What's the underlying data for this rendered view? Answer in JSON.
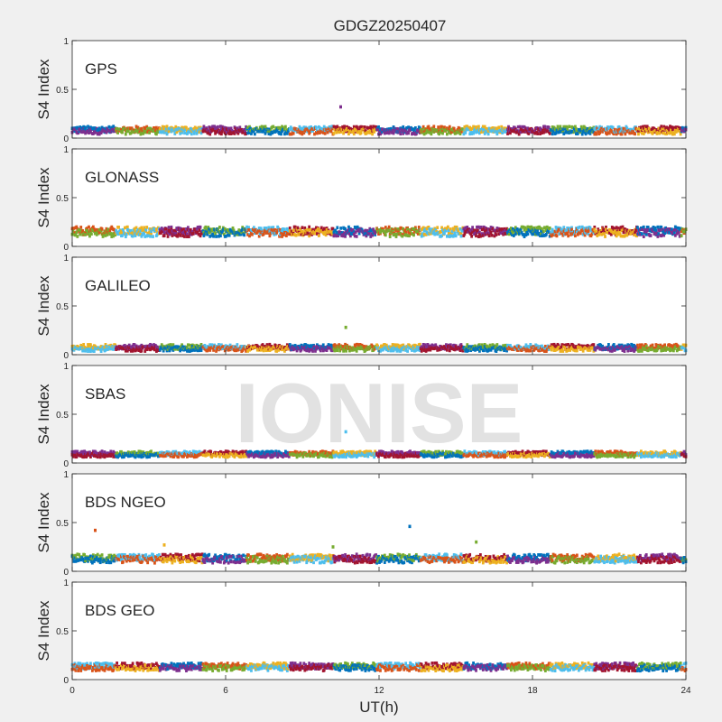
{
  "chart_data": {
    "type": "scatter",
    "title": "GDGZ20250407",
    "xlabel": "UT(h)",
    "ylabel": "S4 Index",
    "xlim": [
      0,
      24
    ],
    "ylim": [
      0,
      1
    ],
    "xticks": [
      "0",
      "6",
      "12",
      "18",
      "24"
    ],
    "yticks": [
      "0",
      "0.5",
      "1"
    ],
    "watermark": "IONISE",
    "grid": false,
    "series_colors": [
      "#0072BD",
      "#D95319",
      "#EDB120",
      "#7E2F8E",
      "#77AC30",
      "#4DBEEE",
      "#A2142F"
    ],
    "panels": [
      {
        "label": "GPS",
        "base_level": 0.08,
        "noise": 0.03,
        "outliers": [
          {
            "x": 10.5,
            "y": 0.32,
            "color": "#7E2F8E"
          }
        ]
      },
      {
        "label": "GLONASS",
        "base_level": 0.15,
        "noise": 0.04,
        "outliers": []
      },
      {
        "label": "GALILEO",
        "base_level": 0.07,
        "noise": 0.025,
        "outliers": [
          {
            "x": 10.7,
            "y": 0.28,
            "color": "#77AC30"
          }
        ]
      },
      {
        "label": "SBAS",
        "base_level": 0.09,
        "noise": 0.02,
        "outliers": [
          {
            "x": 10.7,
            "y": 0.32,
            "color": "#4DBEEE"
          }
        ]
      },
      {
        "label": "BDS NGEO",
        "base_level": 0.13,
        "noise": 0.035,
        "outliers": [
          {
            "x": 0.9,
            "y": 0.42,
            "color": "#D95319"
          },
          {
            "x": 3.6,
            "y": 0.27,
            "color": "#EDB120"
          },
          {
            "x": 13.2,
            "y": 0.46,
            "color": "#0072BD"
          },
          {
            "x": 15.8,
            "y": 0.3,
            "color": "#77AC30"
          },
          {
            "x": 10.2,
            "y": 0.25,
            "color": "#77AC30"
          }
        ]
      },
      {
        "label": "BDS GEO",
        "base_level": 0.13,
        "noise": 0.03,
        "outliers": []
      }
    ]
  }
}
